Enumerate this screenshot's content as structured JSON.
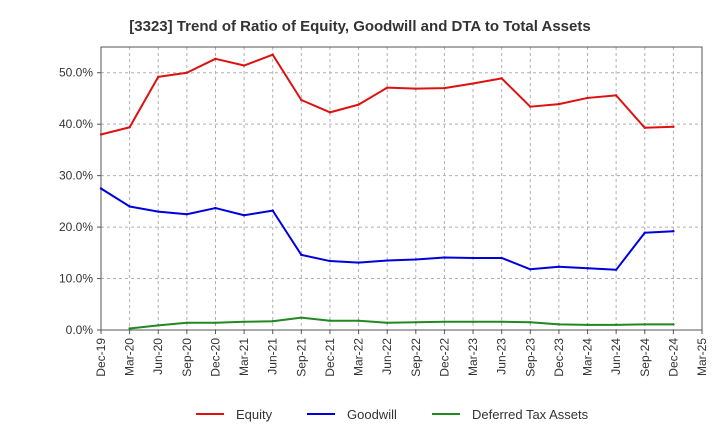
{
  "chart_data": {
    "type": "line",
    "title": "[3323]  Trend of Ratio of Equity, Goodwill and DTA to Total Assets",
    "xlabel": "",
    "ylabel": "",
    "ylim": [
      0,
      55
    ],
    "yticks": [
      0,
      10,
      20,
      30,
      40,
      50
    ],
    "ytick_labels": [
      "0.0%",
      "10.0%",
      "20.0%",
      "30.0%",
      "40.0%",
      "50.0%"
    ],
    "categories": [
      "Dec-19",
      "Mar-20",
      "Jun-20",
      "Sep-20",
      "Dec-20",
      "Mar-21",
      "Jun-21",
      "Sep-21",
      "Dec-21",
      "Mar-22",
      "Jun-22",
      "Sep-22",
      "Dec-22",
      "Mar-23",
      "Jun-23",
      "Sep-23",
      "Dec-23",
      "Mar-24",
      "Jun-24",
      "Sep-24",
      "Dec-24",
      "Mar-25"
    ],
    "grid": true,
    "legend_position": "bottom",
    "series": [
      {
        "name": "Equity",
        "color": "#dd1111",
        "values": [
          38.0,
          39.4,
          49.2,
          50.0,
          52.7,
          51.4,
          53.5,
          44.7,
          42.3,
          43.8,
          47.1,
          46.9,
          47.0,
          47.9,
          48.9,
          43.4,
          43.9,
          45.1,
          45.6,
          39.3,
          39.5,
          null
        ]
      },
      {
        "name": "Goodwill",
        "color": "#0000dd",
        "values": [
          27.5,
          24.0,
          23.0,
          22.5,
          23.7,
          22.3,
          23.2,
          14.6,
          13.4,
          13.1,
          13.5,
          13.7,
          14.1,
          14.0,
          14.0,
          11.8,
          12.3,
          12.0,
          11.7,
          18.9,
          19.2,
          null
        ]
      },
      {
        "name": "Deferred Tax Assets",
        "color": "#228822",
        "values": [
          null,
          0.3,
          0.9,
          1.4,
          1.4,
          1.6,
          1.7,
          2.4,
          1.8,
          1.8,
          1.4,
          1.5,
          1.6,
          1.6,
          1.6,
          1.5,
          1.1,
          1.0,
          1.0,
          1.1,
          1.1,
          null
        ]
      }
    ]
  }
}
